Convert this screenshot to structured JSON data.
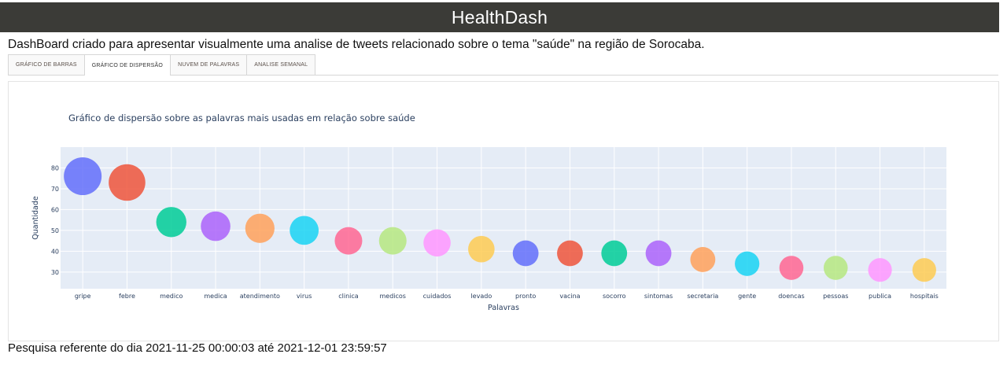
{
  "header": {
    "title": "HealthDash"
  },
  "description": "DashBoard criado para apresentar visualmente uma analise de tweets relacionado sobre o tema \"saúde\" na região de Sorocaba.",
  "tabs": [
    {
      "label": "GRÁFICO DE BARRAS",
      "active": false
    },
    {
      "label": "GRÁFICO DE DISPERSÃO",
      "active": true
    },
    {
      "label": "NUVEM DE PALAVRAS",
      "active": false
    },
    {
      "label": "ANALISE SEMANAL",
      "active": false
    }
  ],
  "footer": {
    "text": "Pesquisa referente do dia 2021-11-25 00:00:03 até 2021-12-01 23:59:57"
  },
  "colors": {
    "header_bg": "#3b3b37",
    "plot_bg": "#e5ecf6",
    "palette": [
      "#636efa",
      "#ef553b",
      "#00cc96",
      "#ab63fa",
      "#ffa15a",
      "#19d3f3",
      "#ff6692",
      "#b6e880",
      "#ff97ff",
      "#fecb52"
    ]
  },
  "chart_data": {
    "type": "scatter",
    "title": "Gráfico de dispersão sobre as palavras mais usadas em relação sobre saúde",
    "xlabel": "Palavras",
    "ylabel": "Quantidade",
    "categories": [
      "gripe",
      "febre",
      "medico",
      "medica",
      "atendimento",
      "virus",
      "clinica",
      "medicos",
      "cuidados",
      "levado",
      "pronto",
      "vacina",
      "socorro",
      "sintomas",
      "secretaria",
      "gente",
      "doencas",
      "pessoas",
      "publica",
      "hospitais"
    ],
    "values": [
      76,
      73,
      54,
      52,
      51,
      50,
      45,
      45,
      44,
      41,
      39,
      39,
      39,
      39,
      36,
      34,
      32,
      32,
      31,
      31
    ],
    "size_by_value": true,
    "yticks": [
      30,
      40,
      50,
      60,
      70,
      80
    ],
    "ylim": [
      22,
      90
    ],
    "grid": true,
    "legend": "none"
  }
}
